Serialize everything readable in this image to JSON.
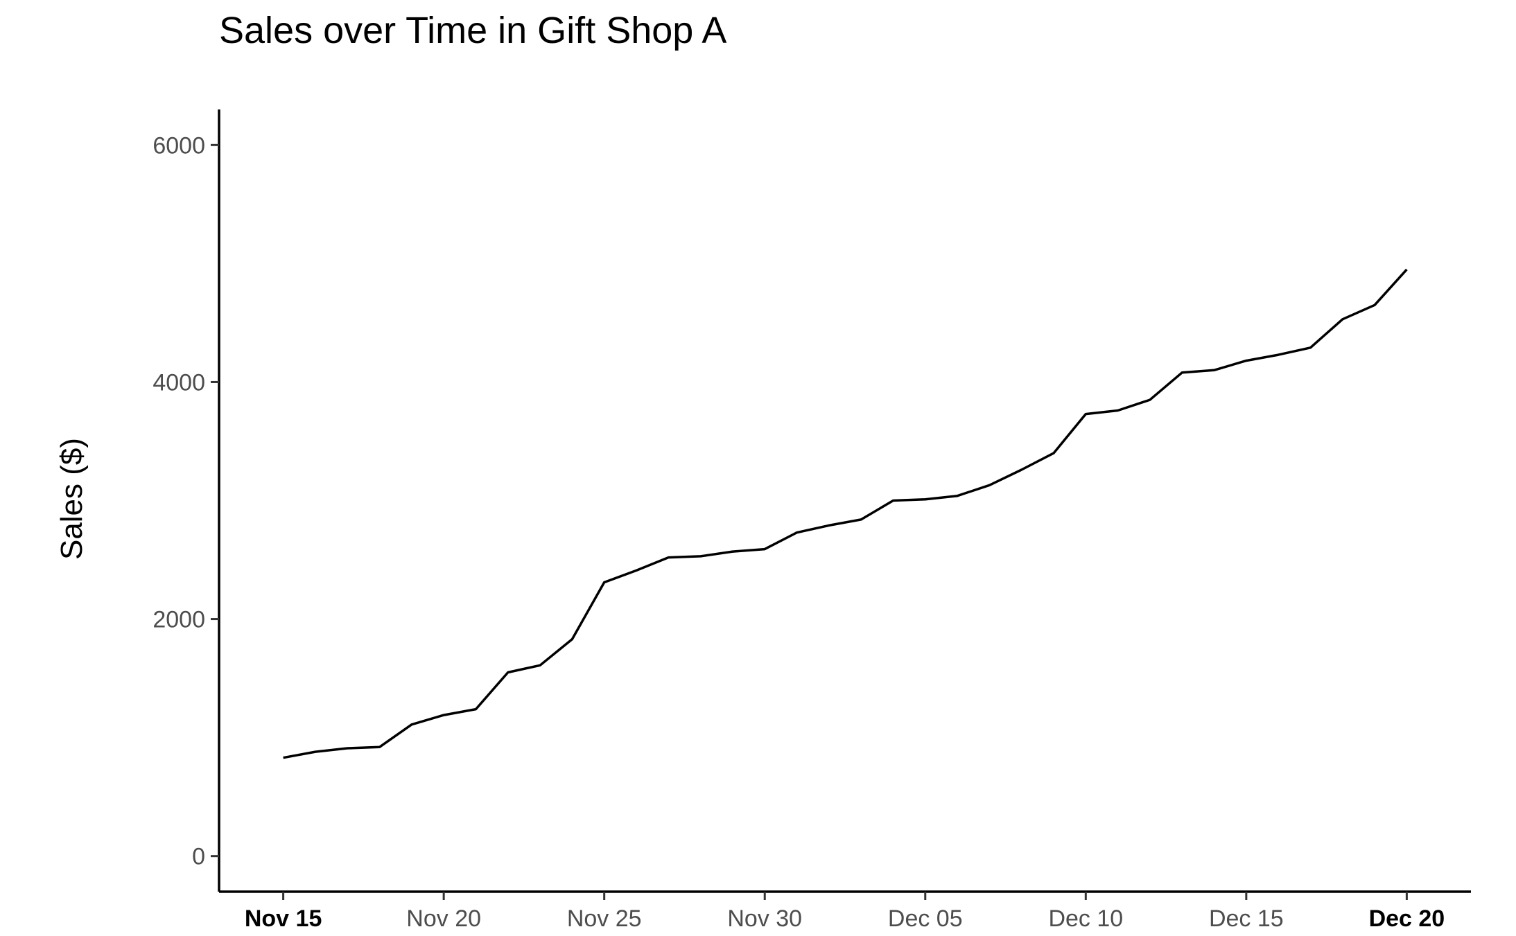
{
  "chart_data": {
    "type": "line",
    "title": "Sales over Time in Gift Shop A",
    "xlabel": "",
    "ylabel": "Sales ($)",
    "ylim": [
      -300,
      6300
    ],
    "xlim": [
      "2023-11-13",
      "2023-12-22"
    ],
    "grid": false,
    "legend": "none",
    "y_ticks": [
      0,
      2000,
      4000,
      6000
    ],
    "x_ticks": [
      {
        "date": "2023-11-15",
        "label": "Nov 15",
        "bold": true
      },
      {
        "date": "2023-11-20",
        "label": "Nov 20",
        "bold": false
      },
      {
        "date": "2023-11-25",
        "label": "Nov 25",
        "bold": false
      },
      {
        "date": "2023-11-30",
        "label": "Nov 30",
        "bold": false
      },
      {
        "date": "2023-12-05",
        "label": "Dec 05",
        "bold": false
      },
      {
        "date": "2023-12-10",
        "label": "Dec 10",
        "bold": false
      },
      {
        "date": "2023-12-15",
        "label": "Dec 15",
        "bold": false
      },
      {
        "date": "2023-12-20",
        "label": "Dec 20",
        "bold": true
      }
    ],
    "series": [
      {
        "color": "#000000",
        "x": [
          "2023-11-15",
          "2023-11-16",
          "2023-11-17",
          "2023-11-18",
          "2023-11-19",
          "2023-11-20",
          "2023-11-21",
          "2023-11-22",
          "2023-11-23",
          "2023-11-24",
          "2023-11-25",
          "2023-11-26",
          "2023-11-27",
          "2023-11-28",
          "2023-11-29",
          "2023-11-30",
          "2023-12-01",
          "2023-12-02",
          "2023-12-03",
          "2023-12-04",
          "2023-12-05",
          "2023-12-06",
          "2023-12-07",
          "2023-12-08",
          "2023-12-09",
          "2023-12-10",
          "2023-12-11",
          "2023-12-12",
          "2023-12-13",
          "2023-12-14",
          "2023-12-15",
          "2023-12-16",
          "2023-12-17",
          "2023-12-18",
          "2023-12-19",
          "2023-12-20"
        ],
        "y": [
          830,
          880,
          910,
          920,
          1110,
          1190,
          1240,
          1550,
          1610,
          1830,
          2310,
          2410,
          2520,
          2530,
          2570,
          2590,
          2730,
          2790,
          2840,
          3000,
          3010,
          3040,
          3130,
          3260,
          3400,
          3730,
          3760,
          3850,
          4080,
          4100,
          4180,
          4230,
          4290,
          4530,
          4650,
          4950
        ]
      }
    ]
  }
}
